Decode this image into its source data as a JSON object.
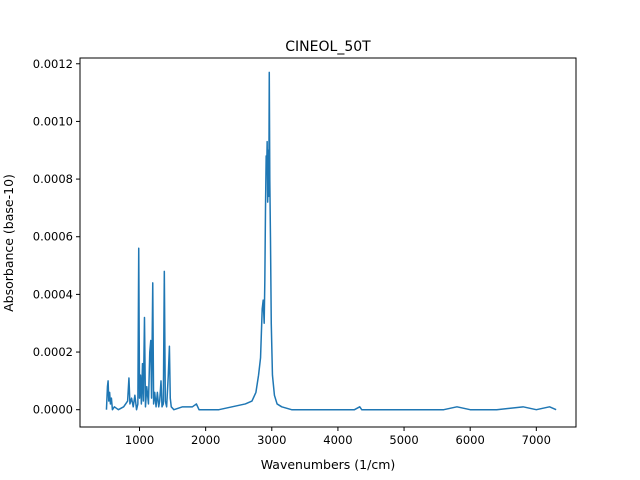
{
  "chart_data": {
    "type": "line",
    "title": "CINEOL_50T",
    "xlabel": "Wavenumbers (1/cm)",
    "ylabel": "Absorbance (base-10)",
    "xlim": [
      100,
      7600
    ],
    "ylim": [
      -6e-05,
      0.00122
    ],
    "xticks": [
      1000,
      2000,
      3000,
      4000,
      5000,
      6000,
      7000
    ],
    "yticks": [
      0.0,
      0.0002,
      0.0004,
      0.0006,
      0.0008,
      0.001,
      0.0012
    ],
    "xtick_labels": [
      "1000",
      "2000",
      "3000",
      "4000",
      "5000",
      "6000",
      "7000"
    ],
    "ytick_labels": [
      "0.0000",
      "0.0002",
      "0.0004",
      "0.0006",
      "0.0008",
      "0.0010",
      "0.0012"
    ],
    "grid": false,
    "series": [
      {
        "color": "#1f77b4",
        "points": [
          [
            500,
            0.0
          ],
          [
            515,
            8e-05
          ],
          [
            525,
            0.0001
          ],
          [
            535,
            3e-05
          ],
          [
            548,
            6e-05
          ],
          [
            560,
            2e-05
          ],
          [
            575,
            4e-05
          ],
          [
            590,
            0.0
          ],
          [
            620,
            1e-05
          ],
          [
            680,
            0.0
          ],
          [
            760,
            1e-05
          ],
          [
            820,
            3e-05
          ],
          [
            840,
            0.00011
          ],
          [
            855,
            2e-05
          ],
          [
            880,
            4e-05
          ],
          [
            905,
            1e-05
          ],
          [
            930,
            5e-05
          ],
          [
            955,
            0.0
          ],
          [
            975,
            2e-05
          ],
          [
            988,
            0.00056
          ],
          [
            1000,
            4e-05
          ],
          [
            1015,
            0.00012
          ],
          [
            1028,
            2e-05
          ],
          [
            1045,
            0.00016
          ],
          [
            1058,
            3e-05
          ],
          [
            1075,
            0.00032
          ],
          [
            1090,
            1e-05
          ],
          [
            1110,
            8e-05
          ],
          [
            1135,
            2e-05
          ],
          [
            1155,
            0.0002
          ],
          [
            1170,
            0.00024
          ],
          [
            1182,
            4e-05
          ],
          [
            1200,
            0.00044
          ],
          [
            1213,
            2e-05
          ],
          [
            1230,
            6e-05
          ],
          [
            1250,
            1e-05
          ],
          [
            1270,
            6e-05
          ],
          [
            1290,
            1e-05
          ],
          [
            1305,
            3e-05
          ],
          [
            1325,
            0.0001
          ],
          [
            1340,
            1e-05
          ],
          [
            1360,
            2e-05
          ],
          [
            1375,
            0.00048
          ],
          [
            1390,
            3e-05
          ],
          [
            1410,
            1e-05
          ],
          [
            1435,
            0.00012
          ],
          [
            1452,
            0.00022
          ],
          [
            1465,
            4e-05
          ],
          [
            1480,
            1e-05
          ],
          [
            1520,
            0.0
          ],
          [
            1650,
            1e-05
          ],
          [
            1800,
            1e-05
          ],
          [
            1860,
            2e-05
          ],
          [
            1900,
            0.0
          ],
          [
            2050,
            0.0
          ],
          [
            2200,
            0.0
          ],
          [
            2400,
            1e-05
          ],
          [
            2600,
            2e-05
          ],
          [
            2700,
            3e-05
          ],
          [
            2760,
            6e-05
          ],
          [
            2800,
            0.00012
          ],
          [
            2830,
            0.00018
          ],
          [
            2855,
            0.00035
          ],
          [
            2870,
            0.00038
          ],
          [
            2885,
            0.0003
          ],
          [
            2895,
            0.00045
          ],
          [
            2905,
            0.0007
          ],
          [
            2915,
            0.00088
          ],
          [
            2922,
            0.00082
          ],
          [
            2930,
            0.00093
          ],
          [
            2938,
            0.00072
          ],
          [
            2946,
            0.0009
          ],
          [
            2955,
            0.00074
          ],
          [
            2962,
            0.00117
          ],
          [
            2970,
            0.0008
          ],
          [
            2980,
            0.0006
          ],
          [
            2992,
            0.0003
          ],
          [
            3010,
            0.00012
          ],
          [
            3040,
            5e-05
          ],
          [
            3080,
            2e-05
          ],
          [
            3150,
            1e-05
          ],
          [
            3300,
            0.0
          ],
          [
            3600,
            0.0
          ],
          [
            3900,
            0.0
          ],
          [
            4100,
            0.0
          ],
          [
            4250,
            0.0
          ],
          [
            4330,
            1e-05
          ],
          [
            4360,
            0.0
          ],
          [
            4600,
            0.0
          ],
          [
            5000,
            0.0
          ],
          [
            5400,
            0.0
          ],
          [
            5600,
            0.0
          ],
          [
            5800,
            1e-05
          ],
          [
            6000,
            0.0
          ],
          [
            6400,
            0.0
          ],
          [
            6800,
            1e-05
          ],
          [
            7000,
            0.0
          ],
          [
            7200,
            1e-05
          ],
          [
            7300,
            0.0
          ]
        ]
      }
    ]
  }
}
